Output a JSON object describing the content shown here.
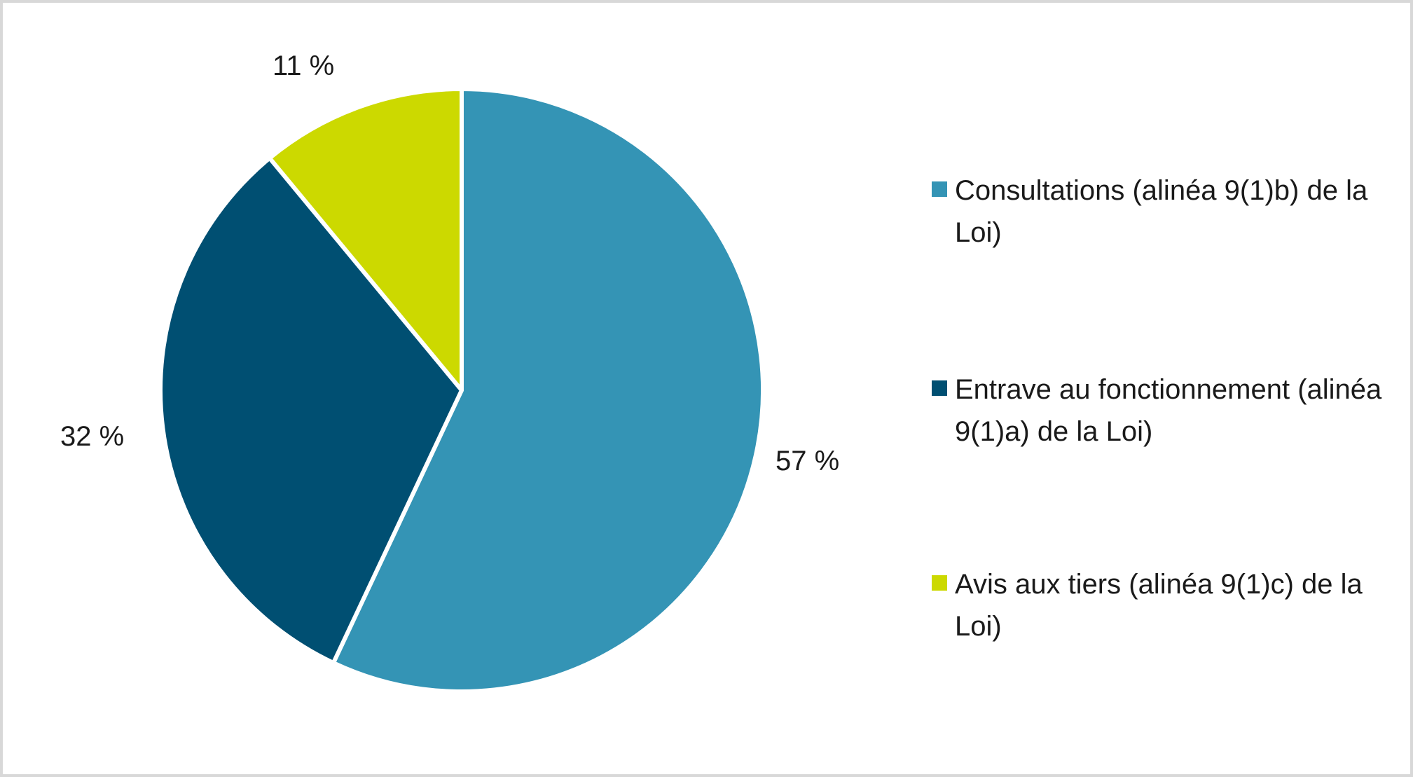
{
  "chart_data": {
    "type": "pie",
    "title": "",
    "unit": "%",
    "total": 100,
    "start_angle_deg": 0,
    "direction": "clockwise",
    "legend_position": "right",
    "background_color": "#FFFFFF",
    "frame_border_color": "#D8D8D8",
    "slice_separator_color": "#FFFFFF",
    "slices": [
      {
        "label": "Consultations (alinéa 9(1)b) de la Loi)",
        "value": 57,
        "display_label": "57 %",
        "color": "#3494B5"
      },
      {
        "label": "Entrave au fonctionnement (alinéa 9(1)a) de la Loi)",
        "value": 32,
        "display_label": "32 %",
        "color": "#004F72"
      },
      {
        "label": "Avis aux tiers (alinéa 9(1)c) de la Loi)",
        "value": 11,
        "display_label": "11 %",
        "color": "#CCD900"
      }
    ]
  }
}
